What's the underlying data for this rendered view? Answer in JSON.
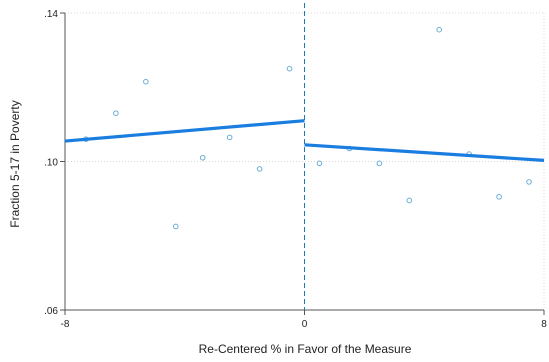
{
  "chart_data": {
    "type": "scatter",
    "title": "",
    "xlabel": "Re-Centered % in Favor of the Measure",
    "ylabel": "Fraction 5-17 in Poverty",
    "xlim": [
      -8,
      8
    ],
    "ylim": [
      0.06,
      0.14
    ],
    "x_ticks": [
      -8,
      0,
      8
    ],
    "x_tick_labels": [
      "-8",
      "0",
      "8"
    ],
    "y_ticks": [
      0.06,
      0.1,
      0.14
    ],
    "y_tick_labels": [
      ".06",
      ".10",
      ".14"
    ],
    "grid": true,
    "cutoff_x": 0,
    "scatter_points": [
      {
        "x": -7.3,
        "y": 0.106
      },
      {
        "x": -6.3,
        "y": 0.113
      },
      {
        "x": -5.3,
        "y": 0.1215
      },
      {
        "x": -4.3,
        "y": 0.0825
      },
      {
        "x": -3.4,
        "y": 0.101
      },
      {
        "x": -2.5,
        "y": 0.1065
      },
      {
        "x": -1.5,
        "y": 0.098
      },
      {
        "x": -0.5,
        "y": 0.125
      },
      {
        "x": 0.5,
        "y": 0.0995
      },
      {
        "x": 1.5,
        "y": 0.1035
      },
      {
        "x": 2.5,
        "y": 0.0995
      },
      {
        "x": 3.5,
        "y": 0.0895
      },
      {
        "x": 4.5,
        "y": 0.1355
      },
      {
        "x": 5.5,
        "y": 0.102
      },
      {
        "x": 6.5,
        "y": 0.0905
      },
      {
        "x": 7.5,
        "y": 0.0945
      }
    ],
    "fit_lines": [
      {
        "x": [
          -8,
          0
        ],
        "y": [
          0.1055,
          0.111
        ]
      },
      {
        "x": [
          0,
          8
        ],
        "y": [
          0.1045,
          0.1003
        ]
      }
    ],
    "colors": {
      "points": "#6aaed6",
      "fit_line": "#1a7de0",
      "cutoff": "#1f77b4",
      "grid": "#d9d9d9",
      "axis": "#555555"
    }
  }
}
